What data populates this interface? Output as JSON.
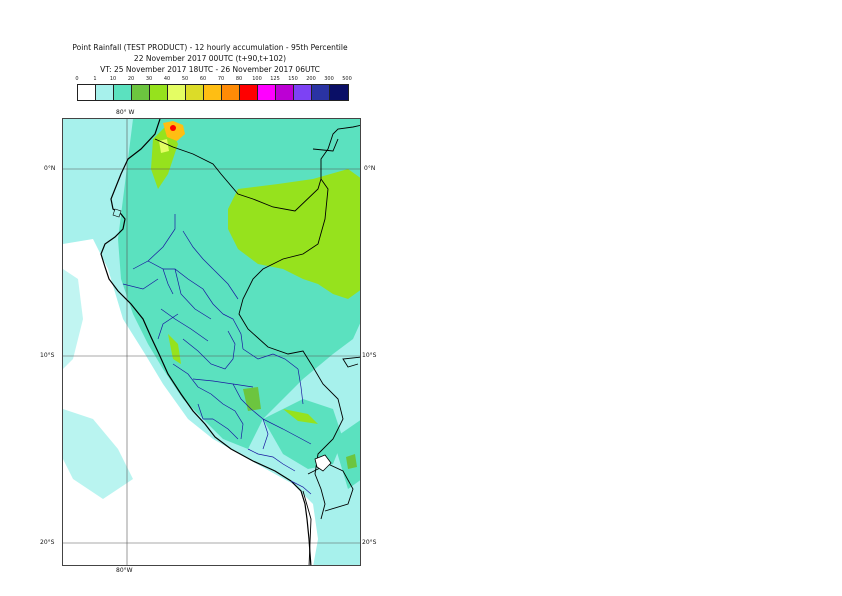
{
  "header": {
    "title_line1": "Point Rainfall (TEST PRODUCT) - 12 hourly accumulation - 95th Percentile",
    "title_line2": "22 November 2017 00UTC (t+90,t+102)",
    "title_line3": "VT: 25 November 2017 18UTC - 26 November 2017 06UTC"
  },
  "legend": {
    "labels": [
      "0",
      "1",
      "10",
      "20",
      "30",
      "40",
      "50",
      "60",
      "70",
      "80",
      "100",
      "125",
      "150",
      "200",
      "300",
      "500"
    ],
    "colors": [
      "#ffffff",
      "#a7f1ec",
      "#5be1bf",
      "#6cc53f",
      "#96e21d",
      "#e4fd63",
      "#dcdc28",
      "#ffbe13",
      "#ff8b06",
      "#ff0000",
      "#ff00ff",
      "#bc00d4",
      "#7d42f4",
      "#2a33a3",
      "#0a0f66"
    ]
  },
  "map": {
    "lon_top_label": "80° W",
    "lon_bottom_label": "80°W",
    "lat_labels_left": [
      "0°N",
      "10°S",
      "20°S"
    ],
    "lat_labels_right": [
      "0°N",
      "10°S",
      "20°S"
    ],
    "ocean_color": "#ffffff",
    "light_rain_color": "#a7f1ec",
    "moderate_rain_color": "#5be1bf",
    "heavy_rain_color": "#96e21d",
    "country_border_color": "#000000",
    "region_border_color": "#1a1aa0"
  }
}
